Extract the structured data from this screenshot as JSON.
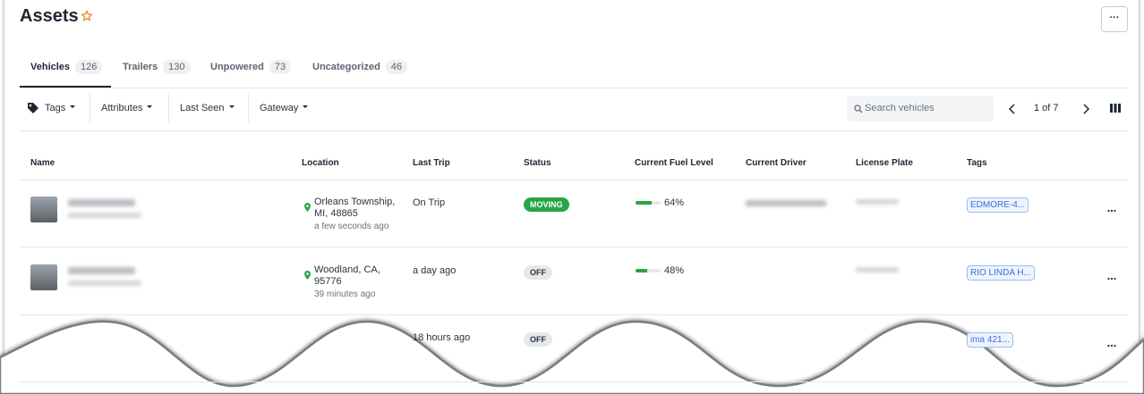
{
  "header": {
    "title": "Assets",
    "menu": "···"
  },
  "tabs": [
    {
      "label": "Vehicles",
      "count": 126
    },
    {
      "label": "Trailers",
      "count": 130
    },
    {
      "label": "Unpowered",
      "count": 73
    },
    {
      "label": "Uncategorized",
      "count": 46
    }
  ],
  "filters": [
    "Tags",
    "Attributes",
    "Last Seen",
    "Gateway"
  ],
  "search": {
    "placeholder": "Search vehicles"
  },
  "pagination": {
    "page": "1 of 7"
  },
  "table": {
    "columns": [
      "Name",
      "Location",
      "Last Trip",
      "Status",
      "Current Fuel Level",
      "Current Driver",
      "License Plate",
      "Tags"
    ],
    "rows": [
      {
        "location": [
          "Orleans Township,",
          "MI, 48865"
        ],
        "location_time": "a few seconds ago",
        "last_trip": "On Trip",
        "status": "MOVING",
        "fuel": {
          "value": 64,
          "label": "64%"
        },
        "tag": "EDMORE-4..."
      },
      {
        "location": [
          "Woodland, CA,",
          "95776"
        ],
        "location_time": "39 minutes ago",
        "last_trip": "a day ago",
        "status": "OFF",
        "fuel": {
          "value": 48,
          "label": "48%"
        },
        "tag": "RIO LINDA H..."
      },
      {
        "last_trip": "18 hours ago",
        "status": "OFF",
        "tag": "ima 421..."
      }
    ]
  }
}
